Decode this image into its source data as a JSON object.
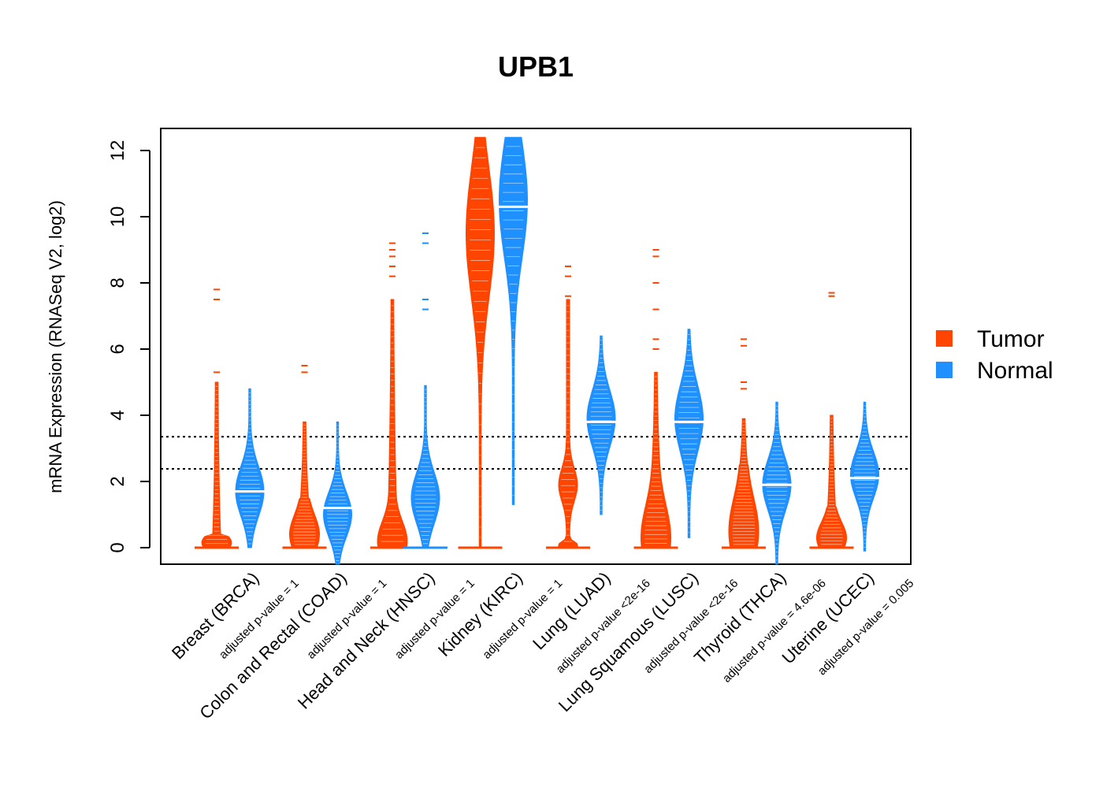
{
  "chart_data": {
    "type": "violin",
    "title": "UPB1",
    "xlabel": "",
    "ylabel": "mRNA Expression (RNASeq V2, log2)",
    "ylim": [
      -0.5,
      12.6
    ],
    "yticks": [
      0,
      2,
      4,
      6,
      8,
      10,
      12
    ],
    "reference_lines": [
      3.35,
      2.38
    ],
    "legend": {
      "position": "right",
      "entries": [
        {
          "name": "Tumor",
          "color": "#ff4500"
        },
        {
          "name": "Normal",
          "color": "#1e90ff"
        }
      ]
    },
    "colors": {
      "tumor": "#ff4500",
      "normal": "#1e90ff"
    },
    "categories": [
      {
        "label": "Breast (BRCA)",
        "pvalue": "adjusted p-value = 1",
        "tumor": {
          "min": 0,
          "max": 5.0,
          "median": 0,
          "dense_top": 0.4,
          "mode": "floor",
          "peak": 0.15,
          "outliers": [
            5.3,
            7.5,
            7.8
          ]
        },
        "normal": {
          "min": 0,
          "max": 4.8,
          "median": 1.7,
          "mode": "peak",
          "peak": 1.7,
          "outliers": []
        }
      },
      {
        "label": "Colon and Rectal (COAD)",
        "pvalue": "adjusted p-value = 1",
        "tumor": {
          "min": 0,
          "max": 3.8,
          "median": 0,
          "dense_top": 1.5,
          "mode": "floor",
          "peak": 0.4,
          "outliers": [
            5.3,
            5.5
          ]
        },
        "normal": {
          "min": -0.5,
          "max": 3.8,
          "median": 1.2,
          "mode": "peak",
          "peak": 1.0,
          "outliers": []
        }
      },
      {
        "label": "Head and Neck (HNSC)",
        "pvalue": "adjusted p-value = 1",
        "tumor": {
          "min": 0,
          "max": 7.5,
          "median": 0,
          "dense_top": 1.5,
          "mode": "floor",
          "peak": 0.2,
          "outliers": [
            8.2,
            8.5,
            8.8,
            9.0,
            9.2
          ]
        },
        "normal": {
          "min": 0,
          "max": 4.9,
          "median": 0,
          "mode": "peak",
          "peak": 1.5,
          "outliers": [
            7.2,
            7.5,
            9.2,
            9.5
          ]
        },
        "_normal_note": ""
      },
      {
        "label": "Kidney (KIRC)",
        "pvalue": "adjusted p-value = 1",
        "tumor": {
          "min": 0,
          "max": 12.4,
          "median": 0,
          "dense_top": 11.0,
          "mode": "peak",
          "peak": 9.5,
          "outliers": []
        },
        "normal": {
          "min": 1.3,
          "max": 12.4,
          "median": 10.3,
          "mode": "peak",
          "peak": 10.5,
          "outliers": []
        }
      },
      {
        "label": "Lung (LUAD)",
        "pvalue": "adjusted p-value <2e-16",
        "tumor": {
          "min": 0,
          "max": 7.5,
          "median": 0,
          "dense_top": 3.0,
          "mode": "bimodal",
          "peak": 1.9,
          "outliers": [
            7.6,
            8.2,
            8.5
          ]
        },
        "normal": {
          "min": 1.0,
          "max": 6.4,
          "median": 3.8,
          "mode": "peak",
          "peak": 3.9,
          "outliers": []
        }
      },
      {
        "label": "Lung Squamous (LUSC)",
        "pvalue": "adjusted p-value <2e-16",
        "tumor": {
          "min": 0,
          "max": 5.3,
          "median": 0,
          "dense_top": 2.5,
          "mode": "floor",
          "peak": 0.3,
          "outliers": [
            6.0,
            6.3,
            7.2,
            8.0,
            8.8,
            9.0
          ]
        },
        "normal": {
          "min": 0.3,
          "max": 6.6,
          "median": 3.8,
          "mode": "peak",
          "peak": 3.9,
          "outliers": []
        }
      },
      {
        "label": "Thyroid (THCA)",
        "pvalue": "adjusted p-value = 4.6e-06",
        "tumor": {
          "min": 0,
          "max": 3.9,
          "median": 0,
          "dense_top": 2.5,
          "mode": "floor",
          "peak": 0.5,
          "outliers": [
            4.8,
            5.0,
            6.1,
            6.3
          ]
        },
        "normal": {
          "min": -0.5,
          "max": 4.4,
          "median": 1.9,
          "mode": "peak",
          "peak": 1.9,
          "outliers": []
        }
      },
      {
        "label": "Uterine (UCEC)",
        "pvalue": "adjusted p-value = 0.005",
        "tumor": {
          "min": 0,
          "max": 4.0,
          "median": 0,
          "dense_top": 1.2,
          "mode": "floor",
          "peak": 0.3,
          "outliers": [
            7.6,
            7.7
          ]
        },
        "normal": {
          "min": -0.1,
          "max": 4.4,
          "median": 2.1,
          "mode": "peak",
          "peak": 2.2,
          "outliers": []
        }
      }
    ]
  }
}
